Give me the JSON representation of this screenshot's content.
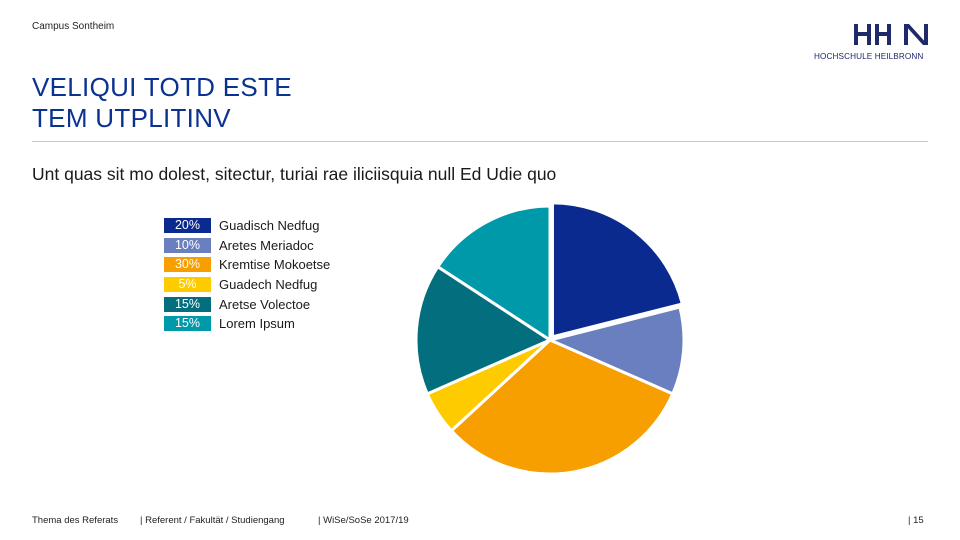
{
  "header": {
    "campus": "Campus Sontheim",
    "logo_text": "HHN",
    "logo_subtitle": "HOCHSCHULE HEILBRONN"
  },
  "title_lines": [
    "VELIQUI TOTD ESTE",
    "TEM UTPLITINV"
  ],
  "subtitle": "Unt quas sit mo dolest, sitectur, turiai rae iliciisquia null Ed Udie quo",
  "chart_data": {
    "type": "pie",
    "title": "",
    "legend_position": "left",
    "slices": [
      {
        "label": "Guadisch Nedfug",
        "value": 20,
        "value_label": "20%",
        "color": "#0a2a8f"
      },
      {
        "label": "Aretes Meriadoc",
        "value": 10,
        "value_label": "10%",
        "color": "#6a7fc0"
      },
      {
        "label": "Kremtise Mokoetse",
        "value": 30,
        "value_label": "30%",
        "color": "#f79e00"
      },
      {
        "label": "Guadech Nedfug",
        "value": 5,
        "value_label": "5%",
        "color": "#fecb00"
      },
      {
        "label": "Aretse Volectoe",
        "value": 15,
        "value_label": "15%",
        "color": "#036f7e"
      },
      {
        "label": "Lorem Ipsum",
        "value": 15,
        "value_label": "15%",
        "color": "#0099aa"
      }
    ]
  },
  "footer": {
    "topic": "Thema des Referats",
    "author": "| Referent / Fakultät / Studiengang",
    "semester": "| WiSe/SoSe 2017/19",
    "page": "| 15"
  }
}
